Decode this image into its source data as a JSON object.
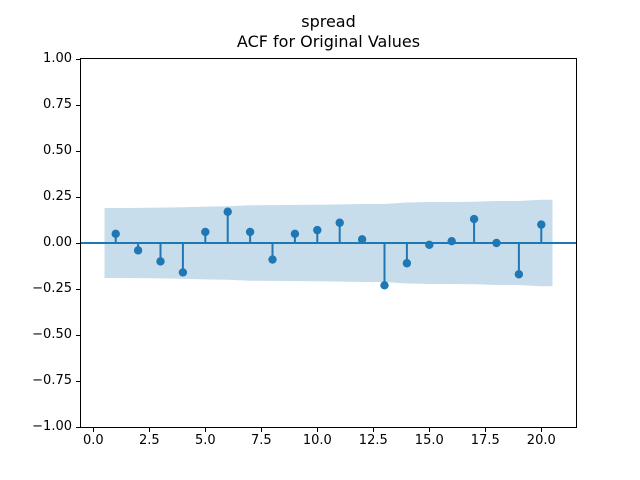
{
  "title": {
    "line1": "spread",
    "line2": "ACF for Original Values"
  },
  "chart_data": {
    "type": "stem",
    "title": "spread\nACF for Original Values",
    "xlabel": "",
    "ylabel": "",
    "grid": false,
    "legend": false,
    "xlim": [
      -0.55,
      21.55
    ],
    "ylim": [
      -1.0,
      1.0
    ],
    "x_ticks": [
      0.0,
      2.5,
      5.0,
      7.5,
      10.0,
      12.5,
      15.0,
      17.5,
      20.0
    ],
    "x_tick_labels": [
      "0.0",
      "2.5",
      "5.0",
      "7.5",
      "10.0",
      "12.5",
      "15.0",
      "17.5",
      "20.0"
    ],
    "y_ticks": [
      1.0,
      0.75,
      0.5,
      0.25,
      0.0,
      -0.25,
      -0.5,
      -0.75,
      -1.0
    ],
    "y_tick_labels": [
      "1.00",
      "0.75",
      "0.50",
      "0.25",
      "0.00",
      "−0.25",
      "−0.50",
      "−0.75",
      "−1.00"
    ],
    "lags": [
      1,
      2,
      3,
      4,
      5,
      6,
      7,
      8,
      9,
      10,
      11,
      12,
      13,
      14,
      15,
      16,
      17,
      18,
      19,
      20
    ],
    "acf_values": [
      0.05,
      -0.04,
      -0.1,
      -0.16,
      0.06,
      0.17,
      0.06,
      -0.09,
      0.05,
      0.07,
      0.11,
      0.02,
      -0.23,
      -0.11,
      -0.01,
      0.01,
      0.13,
      0.0,
      -0.17,
      0.1
    ],
    "confidence_band": {
      "x": [
        0.5,
        1,
        2,
        3,
        4,
        5,
        6,
        7,
        8,
        9,
        10,
        11,
        12,
        13,
        14,
        15,
        16,
        17,
        18,
        19,
        20,
        20.5
      ],
      "half_width": [
        0.19,
        0.19,
        0.191,
        0.192,
        0.194,
        0.198,
        0.2,
        0.205,
        0.206,
        0.207,
        0.208,
        0.21,
        0.212,
        0.212,
        0.22,
        0.223,
        0.223,
        0.224,
        0.228,
        0.228,
        0.235,
        0.235
      ]
    },
    "colors": {
      "stem": "#1f77b4",
      "marker": "#1f77b4",
      "zero_line": "#1f77b4",
      "band": "rgba(31,119,180,0.25)",
      "spine": "#000000",
      "text": "#000000",
      "background": "#ffffff"
    }
  }
}
